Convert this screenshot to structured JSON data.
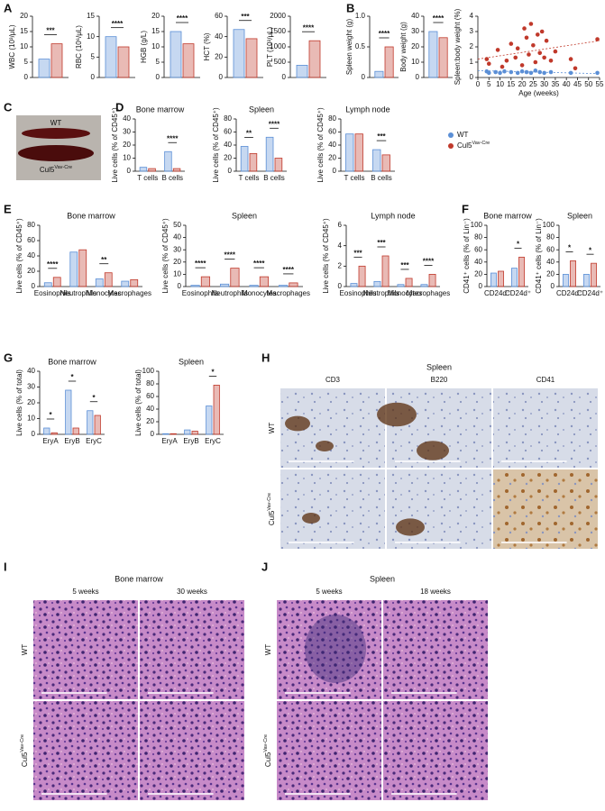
{
  "figure": {
    "panel_labels": [
      "A",
      "B",
      "C",
      "D",
      "E",
      "F",
      "G",
      "H",
      "I",
      "J"
    ],
    "photo_labels": {
      "top": "WT",
      "bottom": "Cul5",
      "bottom_sup": "Vav-Cre"
    },
    "H": {
      "title": "Spleen",
      "columns": [
        "CD3",
        "B220",
        "CD41"
      ],
      "rows": [
        "WT",
        "Cul5"
      ],
      "row_sup": "Vav-Cre"
    },
    "I": {
      "title": "Bone marrow",
      "columns": [
        "5 weeks",
        "30 weeks"
      ],
      "rows": [
        "WT",
        "Cul5"
      ],
      "row_sup": "Vav-Cre"
    },
    "J": {
      "title": "Spleen",
      "columns": [
        "5 weeks",
        "18 weeks"
      ],
      "rows": [
        "WT",
        "Cul5"
      ],
      "row_sup": "Vav-Cre"
    },
    "legend": [
      {
        "name": "WT",
        "color": "#5b8fd6"
      },
      {
        "name": "Cul5",
        "sup": "Vav-Cre",
        "color": "#c0392b"
      }
    ]
  },
  "chart_data": [
    {
      "type": "bar",
      "ylabel": "WBC (10³/μL)",
      "series": [
        {
          "name": "WT",
          "color": "#5b8fd6",
          "values": [
            6
          ]
        },
        {
          "name": "Cul5",
          "color": "#c0392b",
          "values": [
            11
          ]
        }
      ],
      "ylim": [
        0,
        20
      ],
      "yticks": [
        0,
        5,
        10,
        15,
        20
      ],
      "significance": [
        "***"
      ]
    },
    {
      "type": "bar",
      "ylabel": "RBC (10⁶/μL)",
      "series": [
        {
          "name": "WT",
          "color": "#5b8fd6",
          "values": [
            10
          ]
        },
        {
          "name": "Cul5",
          "color": "#c0392b",
          "values": [
            7.5
          ]
        }
      ],
      "ylim": [
        0,
        15
      ],
      "yticks": [
        0,
        5,
        10,
        15
      ],
      "significance": [
        "****"
      ]
    },
    {
      "type": "bar",
      "ylabel": "HGB (g/L)",
      "series": [
        {
          "name": "WT",
          "color": "#5b8fd6",
          "values": [
            15
          ]
        },
        {
          "name": "Cul5",
          "color": "#c0392b",
          "values": [
            11
          ]
        }
      ],
      "ylim": [
        0,
        20
      ],
      "yticks": [
        0,
        5,
        10,
        15,
        20
      ],
      "significance": [
        "****"
      ]
    },
    {
      "type": "bar",
      "ylabel": "HCT (%)",
      "series": [
        {
          "name": "WT",
          "color": "#5b8fd6",
          "values": [
            47
          ]
        },
        {
          "name": "Cul5",
          "color": "#c0392b",
          "values": [
            38
          ]
        }
      ],
      "ylim": [
        0,
        60
      ],
      "yticks": [
        0,
        20,
        40,
        60
      ],
      "significance": [
        "***"
      ]
    },
    {
      "type": "bar",
      "ylabel": "PLT (10³/μL)",
      "series": [
        {
          "name": "WT",
          "color": "#5b8fd6",
          "values": [
            400
          ]
        },
        {
          "name": "Cul5",
          "color": "#c0392b",
          "values": [
            1200
          ]
        }
      ],
      "ylim": [
        0,
        2000
      ],
      "yticks": [
        0,
        500,
        1000,
        1500,
        2000
      ],
      "significance": [
        "****"
      ]
    },
    {
      "type": "bar",
      "ylabel": "Spleen weight (g)",
      "series": [
        {
          "name": "WT",
          "color": "#5b8fd6",
          "values": [
            0.1
          ]
        },
        {
          "name": "Cul5",
          "color": "#c0392b",
          "values": [
            0.5
          ]
        }
      ],
      "ylim": [
        0,
        1
      ],
      "yticks": [
        0,
        0.5,
        {
          "value": 1,
          "label": "1.0"
        }
      ],
      "significance": [
        "****"
      ]
    },
    {
      "type": "bar",
      "ylabel": "Body weight (g)",
      "series": [
        {
          "name": "WT",
          "color": "#5b8fd6",
          "values": [
            30
          ]
        },
        {
          "name": "Cul5",
          "color": "#c0392b",
          "values": [
            26
          ]
        }
      ],
      "ylim": [
        0,
        40
      ],
      "yticks": [
        0,
        10,
        20,
        30,
        40
      ],
      "significance": [
        "****"
      ]
    },
    {
      "type": "scatter",
      "xlabel": "Age (weeks)",
      "ylabel": "Spleen:body weight (%)",
      "xlim": [
        0,
        55
      ],
      "xticks": [
        0,
        5,
        10,
        15,
        20,
        25,
        30,
        35,
        40,
        45,
        50,
        55
      ],
      "ylim": [
        0,
        4
      ],
      "yticks": [
        0,
        1,
        2,
        3,
        4
      ],
      "series": [
        {
          "name": "WT",
          "color": "#5b8fd6",
          "x": [
            4,
            5,
            8,
            10,
            12,
            15,
            18,
            20,
            22,
            24,
            26,
            28,
            30,
            33,
            42,
            54
          ],
          "values": [
            0.4,
            0.3,
            0.35,
            0.3,
            0.4,
            0.35,
            0.3,
            0.4,
            0.35,
            0.3,
            0.45,
            0.35,
            0.3,
            0.35,
            0.3,
            0.3
          ],
          "trend": {
            "x": [
              0,
              55
            ],
            "values": [
              0.45,
              0.25
            ]
          }
        },
        {
          "name": "Cul5",
          "color": "#c0392b",
          "x": [
            4,
            5,
            9,
            11,
            13,
            15,
            17,
            18,
            20,
            21,
            22,
            23,
            24,
            25,
            26,
            27,
            28,
            29,
            30,
            31,
            33,
            35,
            42,
            44,
            54
          ],
          "values": [
            1.2,
            0.9,
            1.8,
            0.7,
            1.1,
            2.2,
            1.3,
            1.9,
            0.8,
            3.2,
            2.6,
            1.5,
            3.5,
            2.1,
            1.0,
            2.8,
            1.6,
            3.0,
            1.3,
            2.4,
            1.1,
            1.7,
            1.2,
            0.6,
            2.5
          ],
          "trend": {
            "x": [
              0,
              55
            ],
            "values": [
              1.2,
              2.4
            ]
          }
        }
      ]
    },
    {
      "type": "bar",
      "title": "Bone marrow",
      "ylabel": "Live cells (% of CD45⁺)",
      "categories": [
        "T cells",
        "B cells"
      ],
      "series": [
        {
          "name": "WT",
          "color": "#5b8fd6",
          "values": [
            3,
            15
          ]
        },
        {
          "name": "Cul5",
          "color": "#c0392b",
          "values": [
            2,
            2
          ]
        }
      ],
      "ylim": [
        0,
        40
      ],
      "yticks": [
        0,
        10,
        20,
        30,
        40
      ],
      "significance": [
        null,
        "****"
      ]
    },
    {
      "type": "bar",
      "title": "Spleen",
      "ylabel": "Live cells (% of CD45⁺)",
      "categories": [
        "T cells",
        "B cells"
      ],
      "series": [
        {
          "name": "WT",
          "color": "#5b8fd6",
          "values": [
            38,
            52
          ]
        },
        {
          "name": "Cul5",
          "color": "#c0392b",
          "values": [
            27,
            20
          ]
        }
      ],
      "ylim": [
        0,
        80
      ],
      "yticks": [
        0,
        20,
        40,
        60,
        80
      ],
      "significance": [
        "**",
        "****"
      ]
    },
    {
      "type": "bar",
      "title": "Lymph node",
      "ylabel": "Live cells (% of CD45⁺)",
      "categories": [
        "T cells",
        "B cells"
      ],
      "series": [
        {
          "name": "WT",
          "color": "#5b8fd6",
          "values": [
            57,
            33
          ]
        },
        {
          "name": "Cul5",
          "color": "#c0392b",
          "values": [
            57,
            25
          ]
        }
      ],
      "ylim": [
        0,
        80
      ],
      "yticks": [
        0,
        20,
        40,
        60,
        80
      ],
      "significance": [
        null,
        "***"
      ]
    },
    {
      "type": "bar",
      "title": "Bone marrow",
      "ylabel": "Live cells (% of CD45⁺)",
      "categories": [
        "Eosinophils",
        "Neutrophils",
        "Monocytes",
        "Macrophages"
      ],
      "series": [
        {
          "name": "WT",
          "color": "#5b8fd6",
          "values": [
            5,
            45,
            10,
            7
          ]
        },
        {
          "name": "Cul5",
          "color": "#c0392b",
          "values": [
            12,
            48,
            18,
            9
          ]
        }
      ],
      "ylim": [
        0,
        80
      ],
      "yticks": [
        0,
        20,
        40,
        60,
        80
      ],
      "significance": [
        "****",
        null,
        "**",
        null
      ]
    },
    {
      "type": "bar",
      "title": "Spleen",
      "ylabel": "Live cells (% of CD45⁺)",
      "categories": [
        "Eosinophils",
        "Neutrophils",
        "Monocytes",
        "Macrophages"
      ],
      "series": [
        {
          "name": "WT",
          "color": "#5b8fd6",
          "values": [
            1,
            2,
            1,
            1
          ]
        },
        {
          "name": "Cul5",
          "color": "#c0392b",
          "values": [
            8,
            15,
            8,
            3
          ]
        }
      ],
      "ylim": [
        0,
        50
      ],
      "yticks": [
        0,
        10,
        20,
        30,
        40,
        50
      ],
      "significance": [
        "****",
        "****",
        "****",
        "****"
      ]
    },
    {
      "type": "bar",
      "title": "Lymph node",
      "ylabel": "Live cells (% of CD45⁺)",
      "categories": [
        "Eosinophils",
        "Neutrophils",
        "Monocytes",
        "Macrophages"
      ],
      "series": [
        {
          "name": "WT",
          "color": "#5b8fd6",
          "values": [
            0.3,
            0.5,
            0.2,
            0.2
          ]
        },
        {
          "name": "Cul5",
          "color": "#c0392b",
          "values": [
            2,
            3,
            0.8,
            1.2
          ]
        }
      ],
      "ylim": [
        0,
        6
      ],
      "yticks": [
        0,
        2,
        4,
        6
      ],
      "significance": [
        "***",
        "***",
        "***",
        "****"
      ]
    },
    {
      "type": "bar",
      "title": "Bone marrow",
      "ylabel": "CD41⁺ cells (% of Lin⁻)",
      "categories": [
        "CD24d⁻",
        "CD24d⁺"
      ],
      "series": [
        {
          "name": "WT",
          "color": "#5b8fd6",
          "values": [
            22,
            30
          ]
        },
        {
          "name": "Cul5",
          "color": "#c0392b",
          "values": [
            25,
            48
          ]
        }
      ],
      "ylim": [
        0,
        100
      ],
      "yticks": [
        0,
        20,
        40,
        60,
        80,
        100
      ],
      "significance": [
        null,
        "*"
      ]
    },
    {
      "type": "bar",
      "title": "Spleen",
      "ylabel": "CD41⁺ cells (% of Lin⁻)",
      "categories": [
        "CD24d⁻",
        "CD24d⁺"
      ],
      "series": [
        {
          "name": "WT",
          "color": "#5b8fd6",
          "values": [
            20,
            20
          ]
        },
        {
          "name": "Cul5",
          "color": "#c0392b",
          "values": [
            42,
            38
          ]
        }
      ],
      "ylim": [
        0,
        100
      ],
      "yticks": [
        0,
        20,
        40,
        60,
        80,
        100
      ],
      "significance": [
        "*",
        "*"
      ]
    },
    {
      "type": "bar",
      "title": "Bone marrow",
      "ylabel": "Live cells (% of total)",
      "categories": [
        "EryA",
        "EryB",
        "EryC"
      ],
      "series": [
        {
          "name": "WT",
          "color": "#5b8fd6",
          "values": [
            4,
            28,
            15
          ]
        },
        {
          "name": "Cul5",
          "color": "#c0392b",
          "values": [
            1,
            4,
            12
          ]
        }
      ],
      "ylim": [
        0,
        40
      ],
      "yticks": [
        0,
        10,
        20,
        30,
        40
      ],
      "significance": [
        "*",
        "*",
        "*"
      ]
    },
    {
      "type": "bar",
      "title": "Spleen",
      "ylabel": "Live cells (% of total)",
      "categories": [
        "EryA",
        "EryB",
        "EryC"
      ],
      "series": [
        {
          "name": "WT",
          "color": "#5b8fd6",
          "values": [
            1,
            7,
            45
          ]
        },
        {
          "name": "Cul5",
          "color": "#c0392b",
          "values": [
            1,
            5,
            78
          ]
        }
      ],
      "ylim": [
        0,
        100
      ],
      "yticks": [
        0,
        20,
        40,
        60,
        80,
        100
      ],
      "significance": [
        null,
        null,
        "*"
      ]
    }
  ]
}
